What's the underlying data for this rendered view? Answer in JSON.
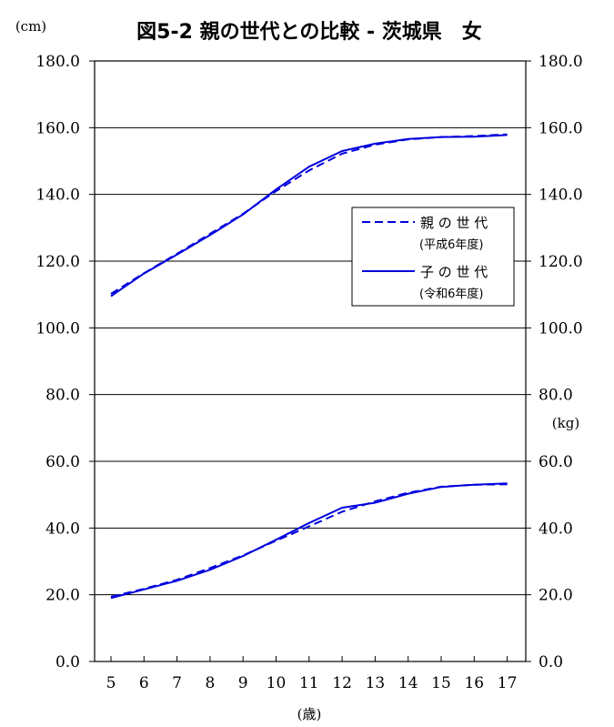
{
  "chart_data": {
    "type": "line",
    "title": "図5-2 親の世代との比較 - 茨城県　女",
    "ylabel_left": "(cm)",
    "ylabel_right": "(kg)",
    "xlabel": "(歳)",
    "ylim": [
      0,
      180
    ],
    "ytick_labels": [
      "0.0",
      "20.0",
      "40.0",
      "60.0",
      "80.0",
      "100.0",
      "120.0",
      "140.0",
      "160.0",
      "180.0"
    ],
    "categories": [
      "5",
      "6",
      "7",
      "8",
      "9",
      "10",
      "11",
      "12",
      "13",
      "14",
      "15",
      "16",
      "17"
    ],
    "grid": true,
    "legend_position": "right-middle",
    "series": [
      {
        "name": "親 の 世 代",
        "period": "(平成6年度)",
        "group": "height",
        "style": "dashed",
        "color": "#0000dd",
        "values": [
          110.2,
          116.4,
          122.2,
          128.2,
          134.2,
          141.0,
          147.2,
          152.2,
          154.9,
          156.5,
          157.2,
          157.5,
          158.0
        ]
      },
      {
        "name": "子 の 世 代",
        "period": "(令和6年度)",
        "group": "height",
        "style": "solid",
        "color": "#0000dd",
        "values": [
          109.5,
          116.3,
          122.0,
          127.8,
          134.0,
          141.5,
          148.3,
          153.0,
          155.2,
          156.6,
          157.2,
          157.3,
          157.8
        ]
      },
      {
        "name": "親 の 世 代",
        "group": "weight",
        "style": "dashed",
        "color": "#0000dd",
        "values": [
          19.4,
          21.8,
          24.5,
          28.0,
          31.8,
          36.2,
          40.5,
          44.9,
          48.0,
          50.6,
          52.4,
          53.0,
          53.1
        ]
      },
      {
        "name": "子 の 世 代",
        "group": "weight",
        "style": "solid",
        "color": "#0000dd",
        "values": [
          19.0,
          21.6,
          24.2,
          27.5,
          31.6,
          36.5,
          41.5,
          46.1,
          47.6,
          50.3,
          52.3,
          53.0,
          53.4
        ]
      }
    ]
  }
}
